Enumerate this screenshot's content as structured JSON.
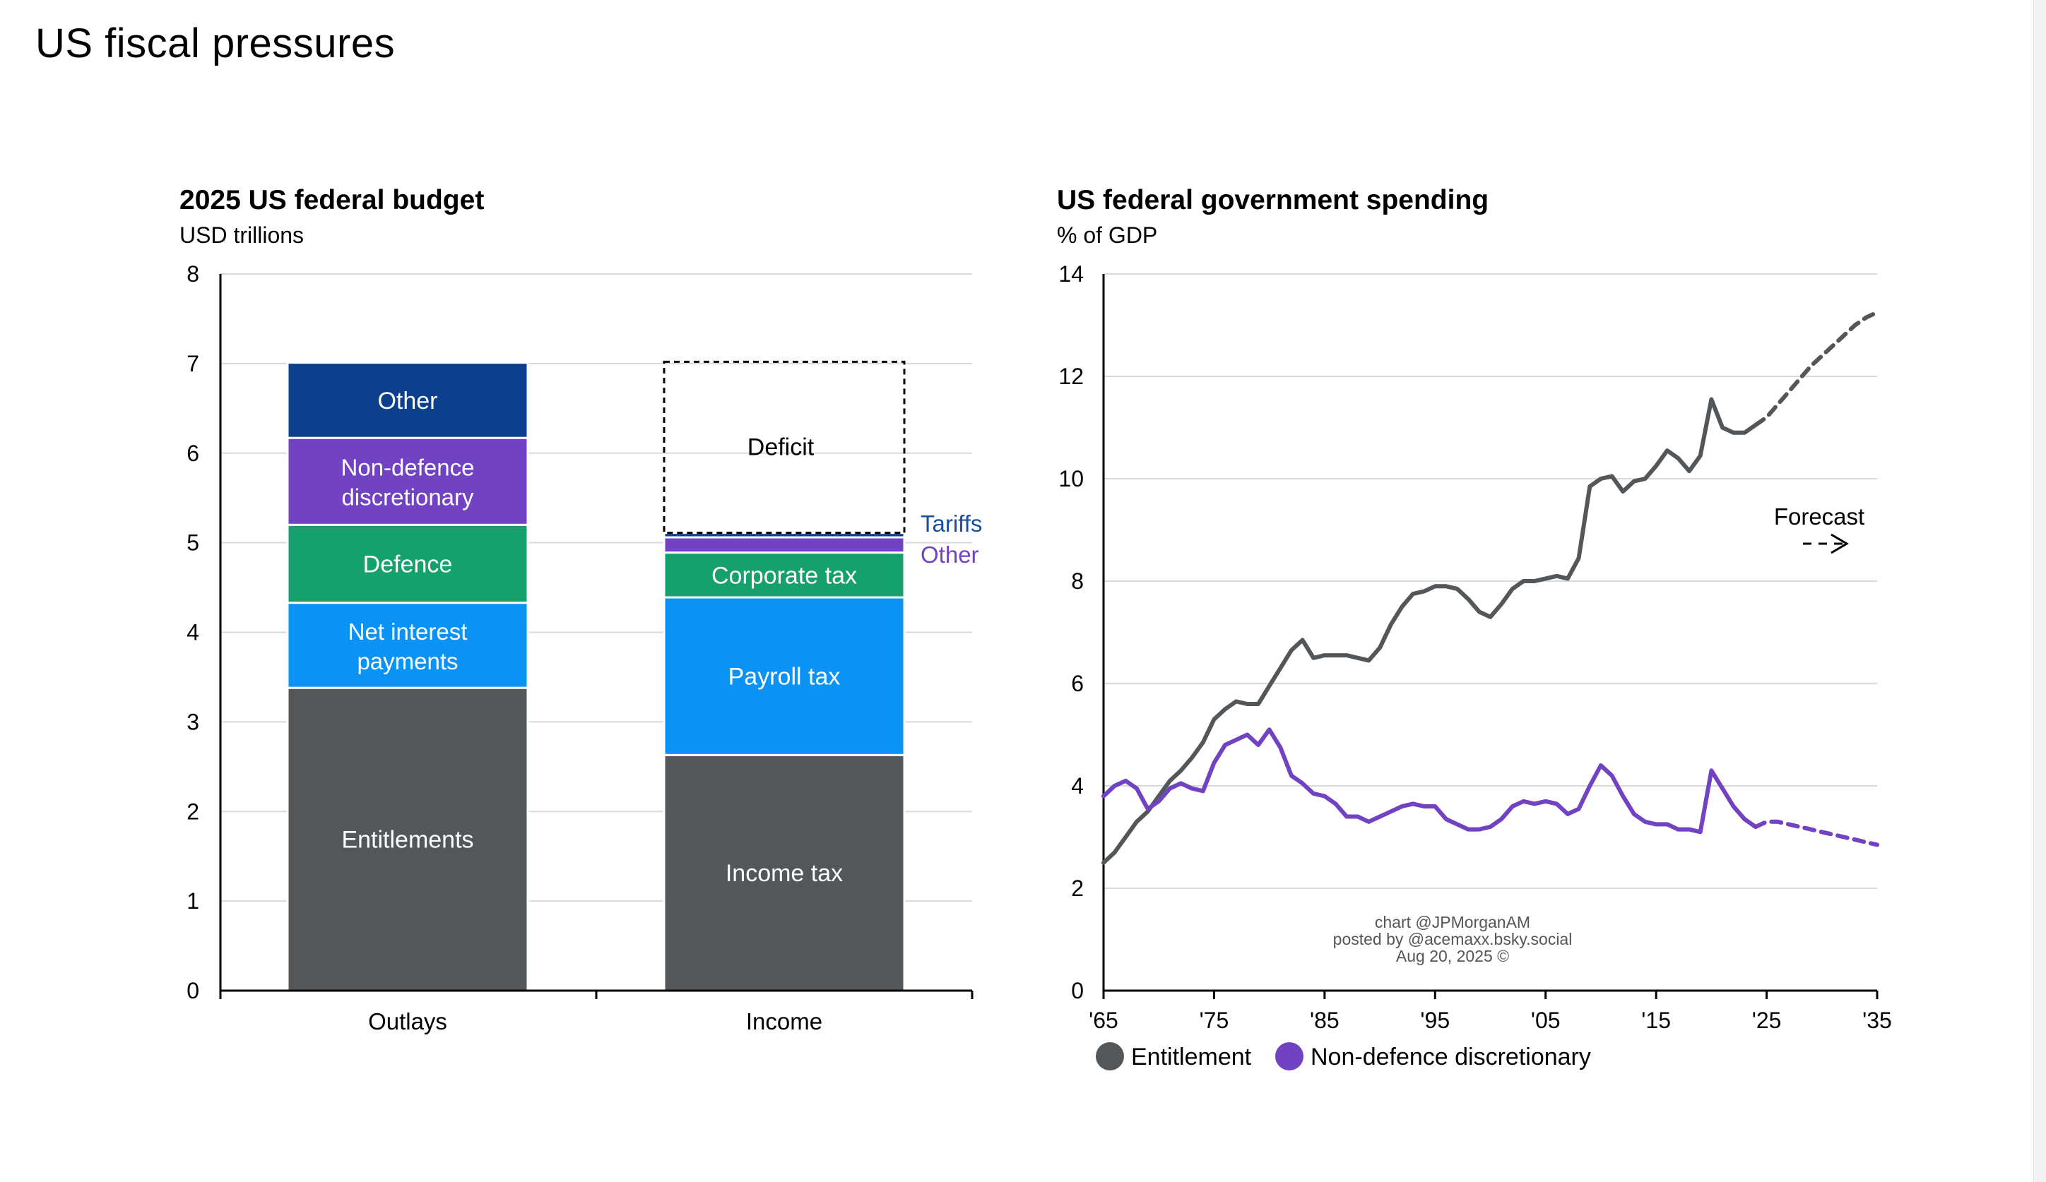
{
  "page": {
    "title": "US fiscal pressures"
  },
  "chart_data": [
    {
      "type": "bar",
      "stacked": true,
      "title": "2025 US federal budget",
      "subtitle": "USD trillions",
      "categories": [
        "Outlays",
        "Income"
      ],
      "ylim": [
        0,
        8
      ],
      "yticks": [
        "0",
        "1",
        "2",
        "3",
        "4",
        "5",
        "6",
        "7",
        "8"
      ],
      "grid": true,
      "colors": {
        "dark": "#54575a",
        "lightblue": "#0a92f5",
        "green": "#16a06e",
        "purple": "#7142c2",
        "navy": "#0c3f8c"
      },
      "outlays": [
        {
          "label": "Entitlements",
          "value": 3.38,
          "color": "#54575a"
        },
        {
          "label": "Net interest payments",
          "line1": "Net interest",
          "line2": "payments",
          "value": 0.95,
          "color": "#0a92f5"
        },
        {
          "label": "Defence",
          "value": 0.87,
          "color": "#16a06e"
        },
        {
          "label": "Non-defence discretionary",
          "line1": "Non-defence",
          "line2": "discretionary",
          "value": 0.97,
          "color": "#7142c2"
        },
        {
          "label": "Other",
          "value": 0.84,
          "color": "#0c3f8c"
        }
      ],
      "income": [
        {
          "label": "Income tax",
          "value": 2.63,
          "color": "#54575a"
        },
        {
          "label": "Payroll tax",
          "value": 1.76,
          "color": "#0a92f5"
        },
        {
          "label": "Corporate tax",
          "value": 0.5,
          "color": "#16a06e"
        },
        {
          "label": "Other",
          "value": 0.17,
          "color": "#7142c2",
          "side_label": true
        },
        {
          "label": "Tariffs",
          "value": 0.05,
          "color": "#0c3f8c",
          "side_label": true
        },
        {
          "label": "Deficit",
          "value": 1.91,
          "color": "none",
          "dashed": true
        }
      ]
    },
    {
      "type": "line",
      "title": "US federal government spending",
      "subtitle": "% of GDP",
      "ylim": [
        0,
        14
      ],
      "xlim": [
        1965,
        2035
      ],
      "yticks": [
        "0",
        "2",
        "4",
        "6",
        "8",
        "10",
        "12",
        "14"
      ],
      "xticks": [
        {
          "x": 1965,
          "label": "'65"
        },
        {
          "x": 1975,
          "label": "'75"
        },
        {
          "x": 1985,
          "label": "'85"
        },
        {
          "x": 1995,
          "label": "'95"
        },
        {
          "x": 2005,
          "label": "'05"
        },
        {
          "x": 2015,
          "label": "'15"
        },
        {
          "x": 2025,
          "label": "'25"
        },
        {
          "x": 2035,
          "label": "'35"
        }
      ],
      "annotation": {
        "label": "Forecast"
      },
      "credits": [
        "chart @JPMorganAM",
        "posted by @acemaxx.bsky.social",
        "Aug 20, 2025 ©"
      ],
      "legend": [
        "Entitlement",
        "Non-defence discretionary"
      ],
      "series": [
        {
          "name": "Entitlement",
          "color": "#54575a",
          "points": [
            [
              1965,
              2.5
            ],
            [
              1966,
              2.7
            ],
            [
              1967,
              3.0
            ],
            [
              1968,
              3.3
            ],
            [
              1969,
              3.5
            ],
            [
              1970,
              3.8
            ],
            [
              1971,
              4.1
            ],
            [
              1972,
              4.3
            ],
            [
              1973,
              4.55
            ],
            [
              1974,
              4.85
            ],
            [
              1975,
              5.3
            ],
            [
              1976,
              5.5
            ],
            [
              1977,
              5.65
            ],
            [
              1978,
              5.6
            ],
            [
              1979,
              5.6
            ],
            [
              1980,
              5.95
            ],
            [
              1981,
              6.3
            ],
            [
              1982,
              6.65
            ],
            [
              1983,
              6.85
            ],
            [
              1984,
              6.5
            ],
            [
              1985,
              6.55
            ],
            [
              1986,
              6.55
            ],
            [
              1987,
              6.55
            ],
            [
              1988,
              6.5
            ],
            [
              1989,
              6.45
            ],
            [
              1990,
              6.7
            ],
            [
              1991,
              7.15
            ],
            [
              1992,
              7.5
            ],
            [
              1993,
              7.75
            ],
            [
              1994,
              7.8
            ],
            [
              1995,
              7.9
            ],
            [
              1996,
              7.9
            ],
            [
              1997,
              7.85
            ],
            [
              1998,
              7.65
            ],
            [
              1999,
              7.4
            ],
            [
              2000,
              7.3
            ],
            [
              2001,
              7.55
            ],
            [
              2002,
              7.85
            ],
            [
              2003,
              8.0
            ],
            [
              2004,
              8.0
            ],
            [
              2005,
              8.05
            ],
            [
              2006,
              8.1
            ],
            [
              2007,
              8.05
            ],
            [
              2008,
              8.45
            ],
            [
              2009,
              9.85
            ],
            [
              2010,
              10.0
            ],
            [
              2011,
              10.05
            ],
            [
              2012,
              9.75
            ],
            [
              2013,
              9.95
            ],
            [
              2014,
              10.0
            ],
            [
              2015,
              10.25
            ],
            [
              2016,
              10.55
            ],
            [
              2017,
              10.4
            ],
            [
              2018,
              10.15
            ],
            [
              2019,
              10.45
            ],
            [
              2020,
              11.55
            ],
            [
              2021,
              11.0
            ],
            [
              2022,
              10.9
            ],
            [
              2023,
              10.9
            ],
            [
              2024,
              11.05
            ]
          ],
          "forecast": [
            [
              2024,
              11.05
            ],
            [
              2025,
              11.2
            ],
            [
              2026,
              11.45
            ],
            [
              2027,
              11.7
            ],
            [
              2028,
              11.95
            ],
            [
              2029,
              12.2
            ],
            [
              2030,
              12.4
            ],
            [
              2031,
              12.6
            ],
            [
              2032,
              12.8
            ],
            [
              2033,
              13.0
            ],
            [
              2034,
              13.15
            ],
            [
              2035,
              13.25
            ]
          ]
        },
        {
          "name": "Non-defence discretionary",
          "color": "#7142c2",
          "points": [
            [
              1965,
              3.8
            ],
            [
              1966,
              4.0
            ],
            [
              1967,
              4.1
            ],
            [
              1968,
              3.95
            ],
            [
              1969,
              3.55
            ],
            [
              1970,
              3.7
            ],
            [
              1971,
              3.95
            ],
            [
              1972,
              4.05
            ],
            [
              1973,
              3.95
            ],
            [
              1974,
              3.9
            ],
            [
              1975,
              4.45
            ],
            [
              1976,
              4.8
            ],
            [
              1977,
              4.9
            ],
            [
              1978,
              5.0
            ],
            [
              1979,
              4.8
            ],
            [
              1980,
              5.1
            ],
            [
              1981,
              4.75
            ],
            [
              1982,
              4.2
            ],
            [
              1983,
              4.05
            ],
            [
              1984,
              3.85
            ],
            [
              1985,
              3.8
            ],
            [
              1986,
              3.65
            ],
            [
              1987,
              3.4
            ],
            [
              1988,
              3.4
            ],
            [
              1989,
              3.3
            ],
            [
              1990,
              3.4
            ],
            [
              1991,
              3.5
            ],
            [
              1992,
              3.6
            ],
            [
              1993,
              3.65
            ],
            [
              1994,
              3.6
            ],
            [
              1995,
              3.6
            ],
            [
              1996,
              3.35
            ],
            [
              1997,
              3.25
            ],
            [
              1998,
              3.15
            ],
            [
              1999,
              3.15
            ],
            [
              2000,
              3.2
            ],
            [
              2001,
              3.35
            ],
            [
              2002,
              3.6
            ],
            [
              2003,
              3.7
            ],
            [
              2004,
              3.65
            ],
            [
              2005,
              3.7
            ],
            [
              2006,
              3.65
            ],
            [
              2007,
              3.45
            ],
            [
              2008,
              3.55
            ],
            [
              2009,
              4.0
            ],
            [
              2010,
              4.4
            ],
            [
              2011,
              4.2
            ],
            [
              2012,
              3.8
            ],
            [
              2013,
              3.45
            ],
            [
              2014,
              3.3
            ],
            [
              2015,
              3.25
            ],
            [
              2016,
              3.25
            ],
            [
              2017,
              3.15
            ],
            [
              2018,
              3.15
            ],
            [
              2019,
              3.1
            ],
            [
              2020,
              4.3
            ],
            [
              2021,
              3.95
            ],
            [
              2022,
              3.6
            ],
            [
              2023,
              3.35
            ],
            [
              2024,
              3.2
            ]
          ],
          "forecast": [
            [
              2024,
              3.2
            ],
            [
              2025,
              3.3
            ],
            [
              2026,
              3.3
            ],
            [
              2027,
              3.25
            ],
            [
              2028,
              3.2
            ],
            [
              2029,
              3.15
            ],
            [
              2030,
              3.1
            ],
            [
              2031,
              3.05
            ],
            [
              2032,
              3.0
            ],
            [
              2033,
              2.95
            ],
            [
              2034,
              2.9
            ],
            [
              2035,
              2.85
            ]
          ]
        }
      ]
    }
  ]
}
